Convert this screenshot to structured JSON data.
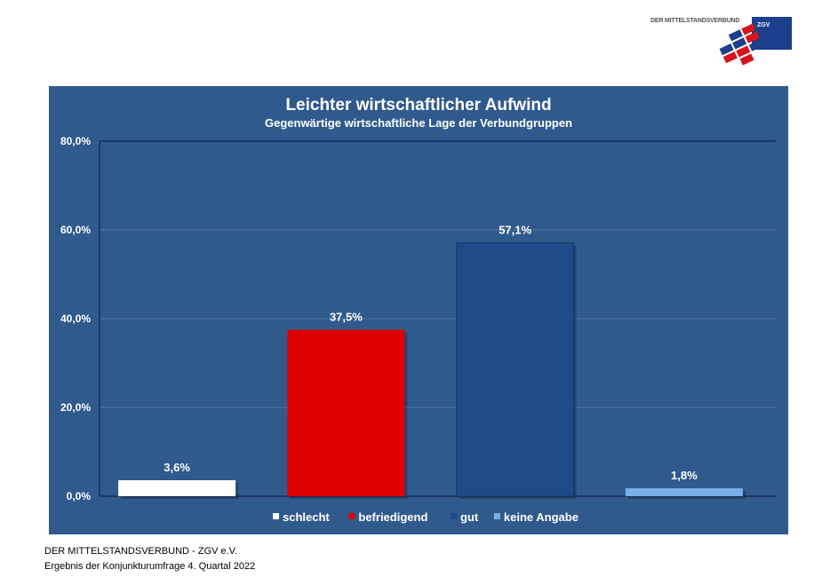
{
  "logo": {
    "text": "DER MITTELSTANDSVERBUND",
    "badge": "ZGV",
    "colors": {
      "red": "#d7141e",
      "blue": "#1c3f8c"
    }
  },
  "chart_data": {
    "type": "bar",
    "title": "Leichter wirtschaftlicher Aufwind",
    "subtitle": "Gegenwärtige wirtschaftliche Lage der Verbundgruppen",
    "categories": [
      "schlecht",
      "befriedigend",
      "gut",
      "keine Angabe"
    ],
    "values": [
      3.6,
      37.5,
      57.1,
      1.8
    ],
    "data_labels": [
      "3,6%",
      "37,5%",
      "57,1%",
      "1,8%"
    ],
    "colors": [
      "#ffffff",
      "#dd0000",
      "#1f4a88",
      "#7aaee8"
    ],
    "ylim": [
      0,
      80
    ],
    "yticks": [
      0,
      20,
      40,
      60,
      80
    ],
    "ytick_labels": [
      "0,0%",
      "20,0%",
      "40,0%",
      "60,0%",
      "80,0%"
    ],
    "grid": true,
    "legend": "bottom",
    "background": "#305a8c"
  },
  "footer": {
    "line1": "DER MITTELSTANDSVERBUND - ZGV e.V.",
    "line2": "Ergebnis der Konjunkturumfrage 4. Quartal 2022"
  }
}
